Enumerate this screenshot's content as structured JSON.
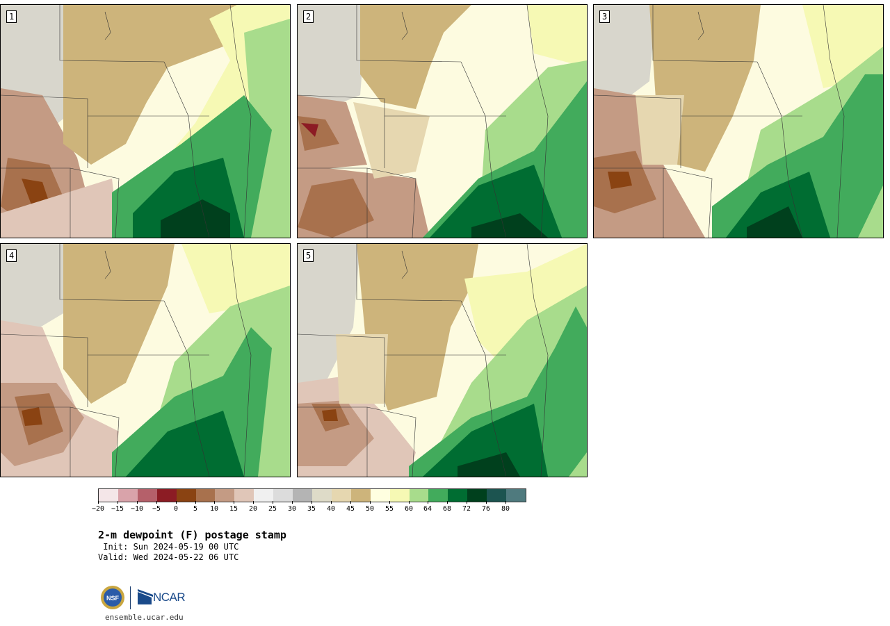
{
  "panels": [
    {
      "label": "1"
    },
    {
      "label": "2"
    },
    {
      "label": "3"
    },
    {
      "label": "4"
    },
    {
      "label": "5"
    }
  ],
  "colorbar": {
    "colors": [
      "#f4e6e8",
      "#d9a3aa",
      "#b5606a",
      "#8c1c24",
      "#8a4312",
      "#a8714d",
      "#c49b84",
      "#e0c6b8",
      "#f0f0f0",
      "#dcdcdc",
      "#b4b4b4",
      "#dedbc8",
      "#e6d7b0",
      "#cdb47b",
      "#ffffe0",
      "#f6f9b4",
      "#a8dc8c",
      "#42ab5c",
      "#006d32",
      "#00401d",
      "#1c5450",
      "#4f7a7e"
    ],
    "tick_labels": [
      "−20",
      "−15",
      "−10",
      "−5",
      "0",
      "5",
      "10",
      "15",
      "20",
      "25",
      "30",
      "35",
      "40",
      "45",
      "50",
      "55",
      "60",
      "64",
      "68",
      "72",
      "76",
      "80"
    ]
  },
  "title": "2-m dewpoint (F) postage stamp",
  "init": " Init: Sun 2024-05-19 00 UTC",
  "valid": "Valid: Wed 2024-05-22 06 UTC",
  "logo": {
    "org": "NCAR",
    "seal_text": "NSF"
  },
  "site": "ensemble.ucar.edu"
}
